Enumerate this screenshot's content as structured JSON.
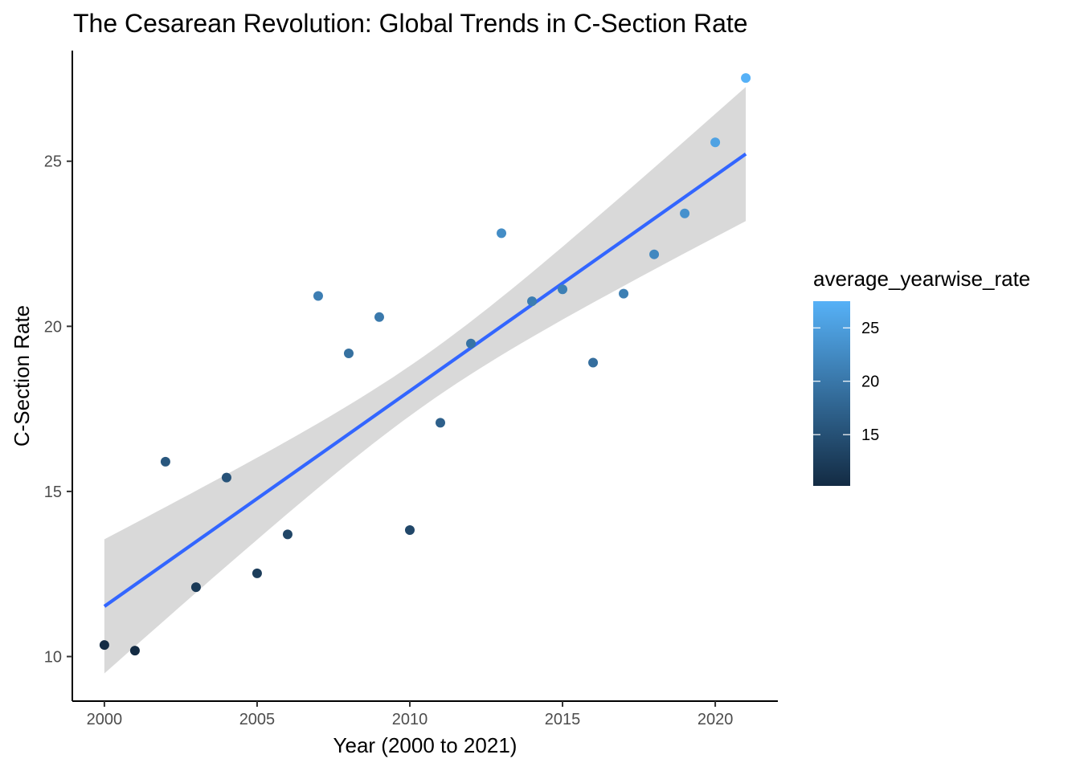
{
  "chart_data": {
    "type": "scatter",
    "title": "The Cesarean Revolution: Global Trends in C-Section Rate",
    "xlabel": "Year (2000 to 2021)",
    "ylabel": "C-Section Rate",
    "xlim": [
      1998.95,
      2022.05
    ],
    "ylim": [
      8.65,
      28.35
    ],
    "x_ticks": [
      2000,
      2005,
      2010,
      2015,
      2020
    ],
    "y_ticks": [
      10,
      15,
      20,
      25
    ],
    "grid": false,
    "legend": {
      "title": "average_yearwise_rate",
      "placement": "right",
      "type": "color-gradient",
      "range": [
        10.2,
        27.5
      ],
      "ticks": [
        15,
        20,
        25
      ],
      "color_low": "#132B43",
      "color_high": "#56B1F7"
    },
    "series": [
      {
        "x": [
          2000,
          2001,
          2002,
          2003,
          2004,
          2005,
          2006,
          2007,
          2008,
          2009,
          2010,
          2011,
          2012,
          2013,
          2014,
          2015,
          2016,
          2017,
          2018,
          2019,
          2020,
          2021
        ],
        "values": [
          10.35,
          10.18,
          15.9,
          12.1,
          15.42,
          12.52,
          13.7,
          20.92,
          19.18,
          20.28,
          13.83,
          17.08,
          19.48,
          22.82,
          20.76,
          21.12,
          18.9,
          20.99,
          22.18,
          23.42,
          25.57,
          27.52
        ]
      }
    ],
    "trend": {
      "method": "linear fit with confidence band",
      "x": [
        2000,
        2021
      ],
      "values": [
        11.52,
        25.22
      ],
      "band_lower": [
        9.45,
        23.2
      ],
      "band_upper": [
        13.55,
        27.25
      ],
      "color": "#3366FF",
      "band_color": "#D9D9D9"
    }
  }
}
